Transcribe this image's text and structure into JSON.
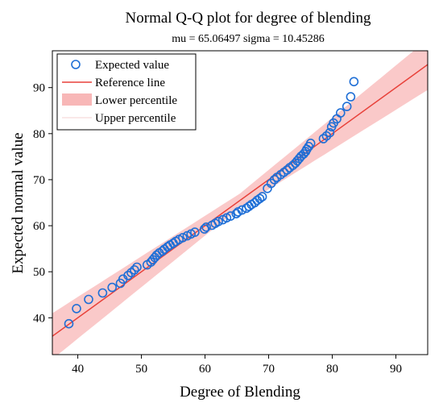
{
  "chart_data": {
    "type": "scatter",
    "title": "Normal Q-Q plot for degree of blending",
    "subtitle": "mu = 65.06497  sigma = 10.45286",
    "xlabel": "Degree of Blending",
    "ylabel": "Expected normal value",
    "xlim": [
      36,
      95
    ],
    "ylim": [
      32,
      98
    ],
    "xticks": [
      "40",
      "50",
      "60",
      "70",
      "80",
      "90"
    ],
    "yticks": [
      "40",
      "50",
      "60",
      "70",
      "80",
      "90"
    ],
    "grid": false,
    "legend_position": "top-left",
    "legend": [
      "Expected value",
      "Reference line",
      "Lower percentile",
      "Upper percentile"
    ],
    "reference_line": {
      "slope": 1.0,
      "intercept": 0.0
    },
    "confidence_band_halfwidth": {
      "at_center": 1.5,
      "at_x36": 5.0,
      "at_x95": 5.5
    },
    "colors": {
      "points": "#1f6fd6",
      "line": "#e8413a",
      "band": "#f8b7b7"
    },
    "series": [
      {
        "name": "Expected value",
        "x": [
          38.6,
          39.8,
          41.7,
          43.9,
          45.4,
          46.7,
          47.1,
          47.9,
          48.4,
          48.9,
          49.3,
          50.9,
          51.5,
          51.8,
          52.1,
          52.4,
          52.8,
          53.3,
          53.6,
          54.1,
          54.5,
          55.0,
          55.4,
          55.9,
          56.5,
          57.2,
          57.8,
          58.4,
          59.9,
          60.2,
          61.1,
          61.6,
          62.1,
          62.8,
          63.4,
          64.0,
          64.9,
          65.2,
          65.8,
          66.5,
          66.9,
          67.3,
          67.8,
          68.2,
          68.6,
          69.0,
          69.8,
          70.4,
          70.9,
          71.3,
          71.9,
          72.4,
          72.9,
          73.3,
          73.8,
          74.2,
          74.5,
          74.8,
          75.1,
          75.5,
          75.8,
          76.0,
          76.3,
          76.6,
          78.6,
          79.1,
          79.6,
          79.9,
          80.2,
          80.7,
          81.3,
          82.3,
          82.9,
          83.4
        ],
        "y": [
          38.7,
          42.0,
          44.0,
          45.4,
          46.6,
          47.5,
          48.4,
          49.2,
          49.8,
          50.4,
          51.0,
          51.5,
          52.1,
          52.6,
          53.1,
          53.6,
          54.1,
          54.5,
          54.9,
          55.4,
          55.8,
          56.2,
          56.6,
          57.0,
          57.4,
          57.8,
          58.2,
          58.6,
          59.3,
          59.7,
          60.1,
          60.5,
          60.9,
          61.3,
          61.7,
          62.1,
          62.6,
          63.0,
          63.4,
          63.8,
          64.2,
          64.6,
          65.0,
          65.5,
          65.9,
          66.3,
          68.1,
          69.2,
          70.0,
          70.5,
          71.1,
          71.6,
          72.1,
          72.6,
          73.1,
          73.6,
          74.1,
          74.6,
          75.1,
          75.6,
          76.1,
          76.6,
          77.2,
          77.9,
          78.9,
          79.5,
          80.2,
          81.5,
          82.3,
          83.2,
          84.5,
          85.9,
          88.0,
          91.3
        ]
      }
    ]
  }
}
